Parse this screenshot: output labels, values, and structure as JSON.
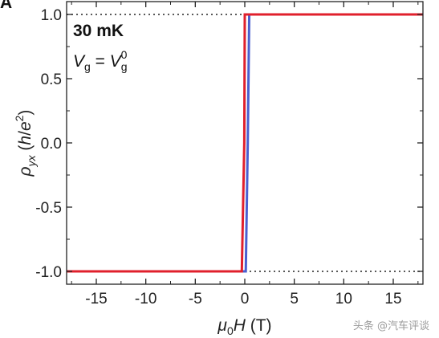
{
  "chart_data": {
    "type": "line",
    "panel_label": "A",
    "xlabel": {
      "symbol": "μ",
      "sub": "0",
      "var": "H",
      "unit": " (T)"
    },
    "ylabel": {
      "symbol": "ρ",
      "sub": "yx",
      "unit_open": " (",
      "num": "h",
      "slash": "/",
      "den": "e",
      "sup": "2",
      "unit_close": ")"
    },
    "xlim": [
      -18,
      18
    ],
    "ylim": [
      -1.1,
      1.1
    ],
    "x_ticks": [
      -15,
      -10,
      -5,
      0,
      5,
      10,
      15
    ],
    "x_tick_labels": [
      "-15",
      "-10",
      "-5",
      "0",
      "5",
      "10",
      "15"
    ],
    "y_ticks": [
      -1.0,
      -0.5,
      0.0,
      0.5,
      1.0
    ],
    "y_tick_labels": [
      "-1.0",
      "-0.5",
      "0.0",
      "0.5",
      "1.0"
    ],
    "reference_lines": [
      1.0,
      -1.0
    ],
    "annotations": {
      "temperature": "30 mK",
      "gate": {
        "lhs": "V",
        "lhs_sub": "g",
        "eq": " = ",
        "rhs": "V",
        "rhs_sub": "g",
        "rhs_sup": "0"
      }
    },
    "series": [
      {
        "color": "#4a5fd0",
        "x": [
          -18,
          0.1,
          0.3,
          0.45,
          18
        ],
        "y": [
          -1.0,
          -1.0,
          0.0,
          1.0,
          1.0
        ]
      },
      {
        "color": "#e0202c",
        "x": [
          -18,
          -0.3,
          -0.05,
          0.0,
          18
        ],
        "y": [
          -1.0,
          -1.0,
          0.0,
          1.0,
          1.0
        ]
      }
    ]
  },
  "watermark": "头条 @汽车评谈"
}
